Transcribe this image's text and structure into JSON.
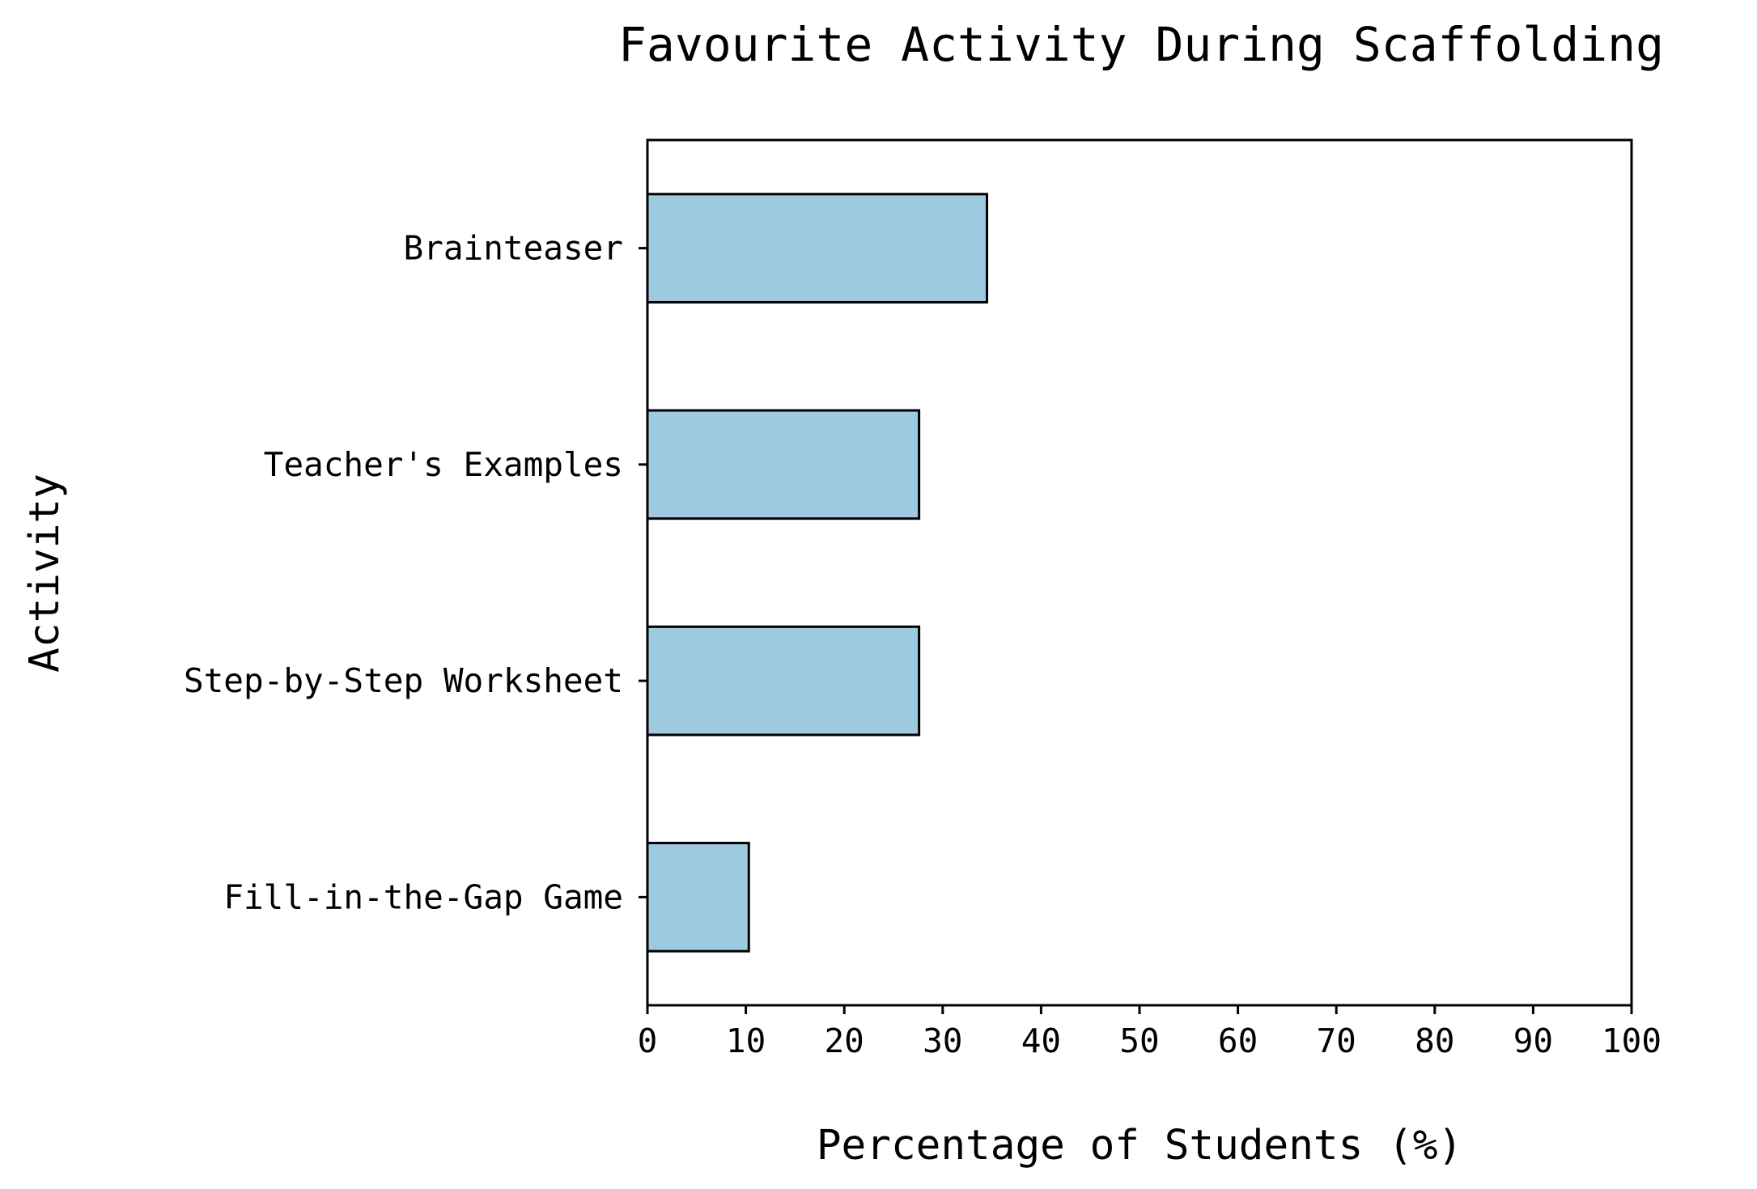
{
  "chart_data": {
    "type": "bar",
    "orientation": "horizontal",
    "title": "Favourite Activity During Scaffolding",
    "xlabel": "Percentage of Students (%)",
    "ylabel": "Activity",
    "categories": [
      "Brainteaser",
      "Teacher's Examples",
      "Step-by-Step Worksheet",
      "Fill-in-the-Gap Game"
    ],
    "values": [
      34.5,
      27.6,
      27.6,
      10.3
    ],
    "xlim": [
      0,
      100
    ],
    "xticks": [
      "0",
      "10",
      "20",
      "30",
      "40",
      "50",
      "60",
      "70",
      "80",
      "90",
      "100"
    ],
    "bar_color": "#9ecae1",
    "bar_edge_color": "#000000",
    "grid": false,
    "legend": "none"
  }
}
